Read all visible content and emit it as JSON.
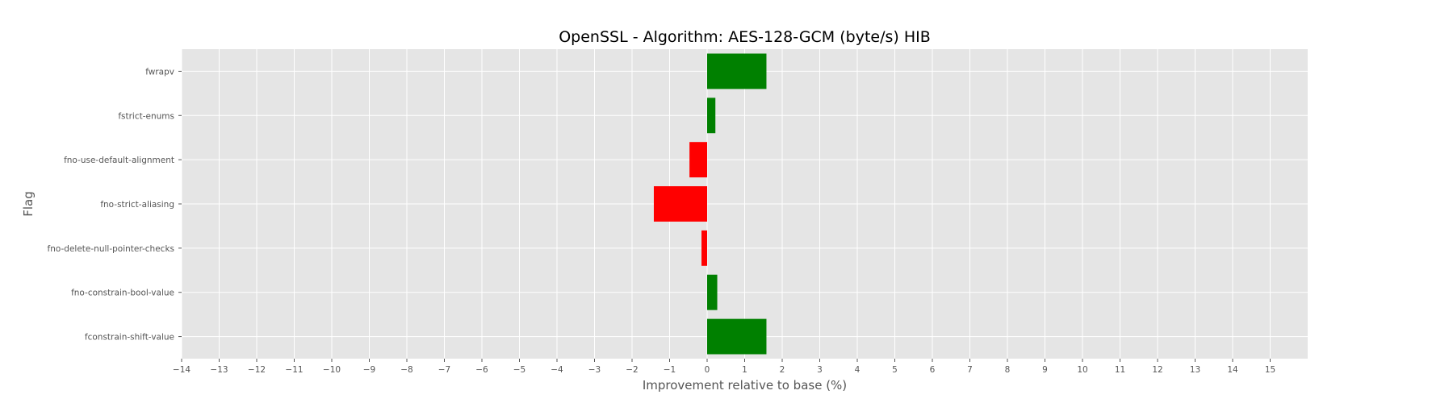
{
  "chart_data": {
    "type": "bar",
    "orientation": "horizontal",
    "title": "OpenSSL - Algorithm: AES-128-GCM (byte/s) HIB",
    "xlabel": "Improvement relative to base (%)",
    "ylabel": "Flag",
    "xlim": [
      -14,
      16
    ],
    "xticks": [
      -14,
      -13,
      -12,
      -11,
      -10,
      -9,
      -8,
      -7,
      -6,
      -5,
      -4,
      -3,
      -2,
      -1,
      0,
      1,
      2,
      3,
      4,
      5,
      6,
      7,
      8,
      9,
      10,
      11,
      12,
      13,
      14,
      15
    ],
    "grid": true,
    "categories": [
      "fwrapv",
      "fstrict-enums",
      "fno-use-default-alignment",
      "fno-strict-aliasing",
      "fno-delete-null-pointer-checks",
      "fno-constrain-bool-value",
      "fconstrain-shift-value"
    ],
    "values": [
      1.58,
      0.22,
      -0.47,
      -1.42,
      -0.15,
      0.27,
      1.58
    ],
    "colors": {
      "positive": "#008000",
      "negative": "#ff0000",
      "background": "#e5e5e5",
      "grid": "#ffffff"
    }
  }
}
